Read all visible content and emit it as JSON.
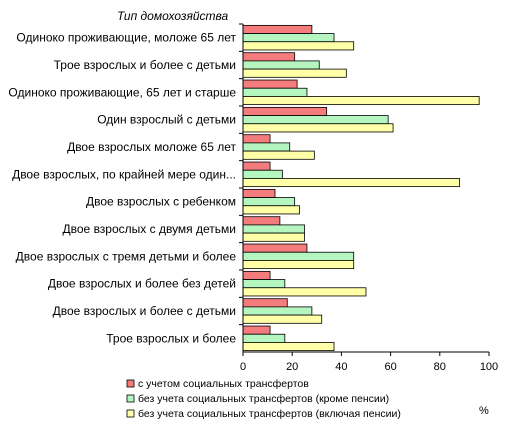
{
  "chart_data": {
    "type": "bar",
    "orientation": "horizontal",
    "category_axis_title": "Тип домохозяйства",
    "categories": [
      "Одиноко проживающие, моложе 65 лет",
      "Трое взрослых и более с детьми",
      "Одиноко проживающие, 65 лет и старше",
      "Один взрослый с детьми",
      "Двое взрослых моложе 65 лет",
      "Двое взрослых, по крайней мере один...",
      "Двое взрослых с ребенком",
      "Двое взрослых с двумя детьми",
      "Двое взрослых с тремя детьми и более",
      "Двое взрослых и более без детей",
      "Двое взрослых и более с детьми",
      "Трое взрослых и более"
    ],
    "series": [
      {
        "name": "с учетом социальных трансфертов",
        "color": "#f47c7c",
        "values": [
          28,
          21,
          22,
          34,
          11,
          11,
          13,
          15,
          26,
          11,
          18,
          11
        ]
      },
      {
        "name": "без учета социальных трансфертов (кроме пенсии)",
        "color": "#b5f5c0",
        "values": [
          37,
          31,
          26,
          59,
          19,
          16,
          21,
          25,
          45,
          17,
          28,
          17
        ]
      },
      {
        "name": "без учета социальных трансфертов (включая пенсии)",
        "color": "#ffffa8",
        "values": [
          45,
          42,
          96,
          61,
          29,
          88,
          23,
          25,
          45,
          50,
          32,
          37
        ]
      }
    ],
    "xlim": [
      0,
      100
    ],
    "xticks": [
      0,
      20,
      40,
      60,
      80,
      100
    ],
    "xunit": "%",
    "legend_position": "bottom-left",
    "grid": false
  }
}
